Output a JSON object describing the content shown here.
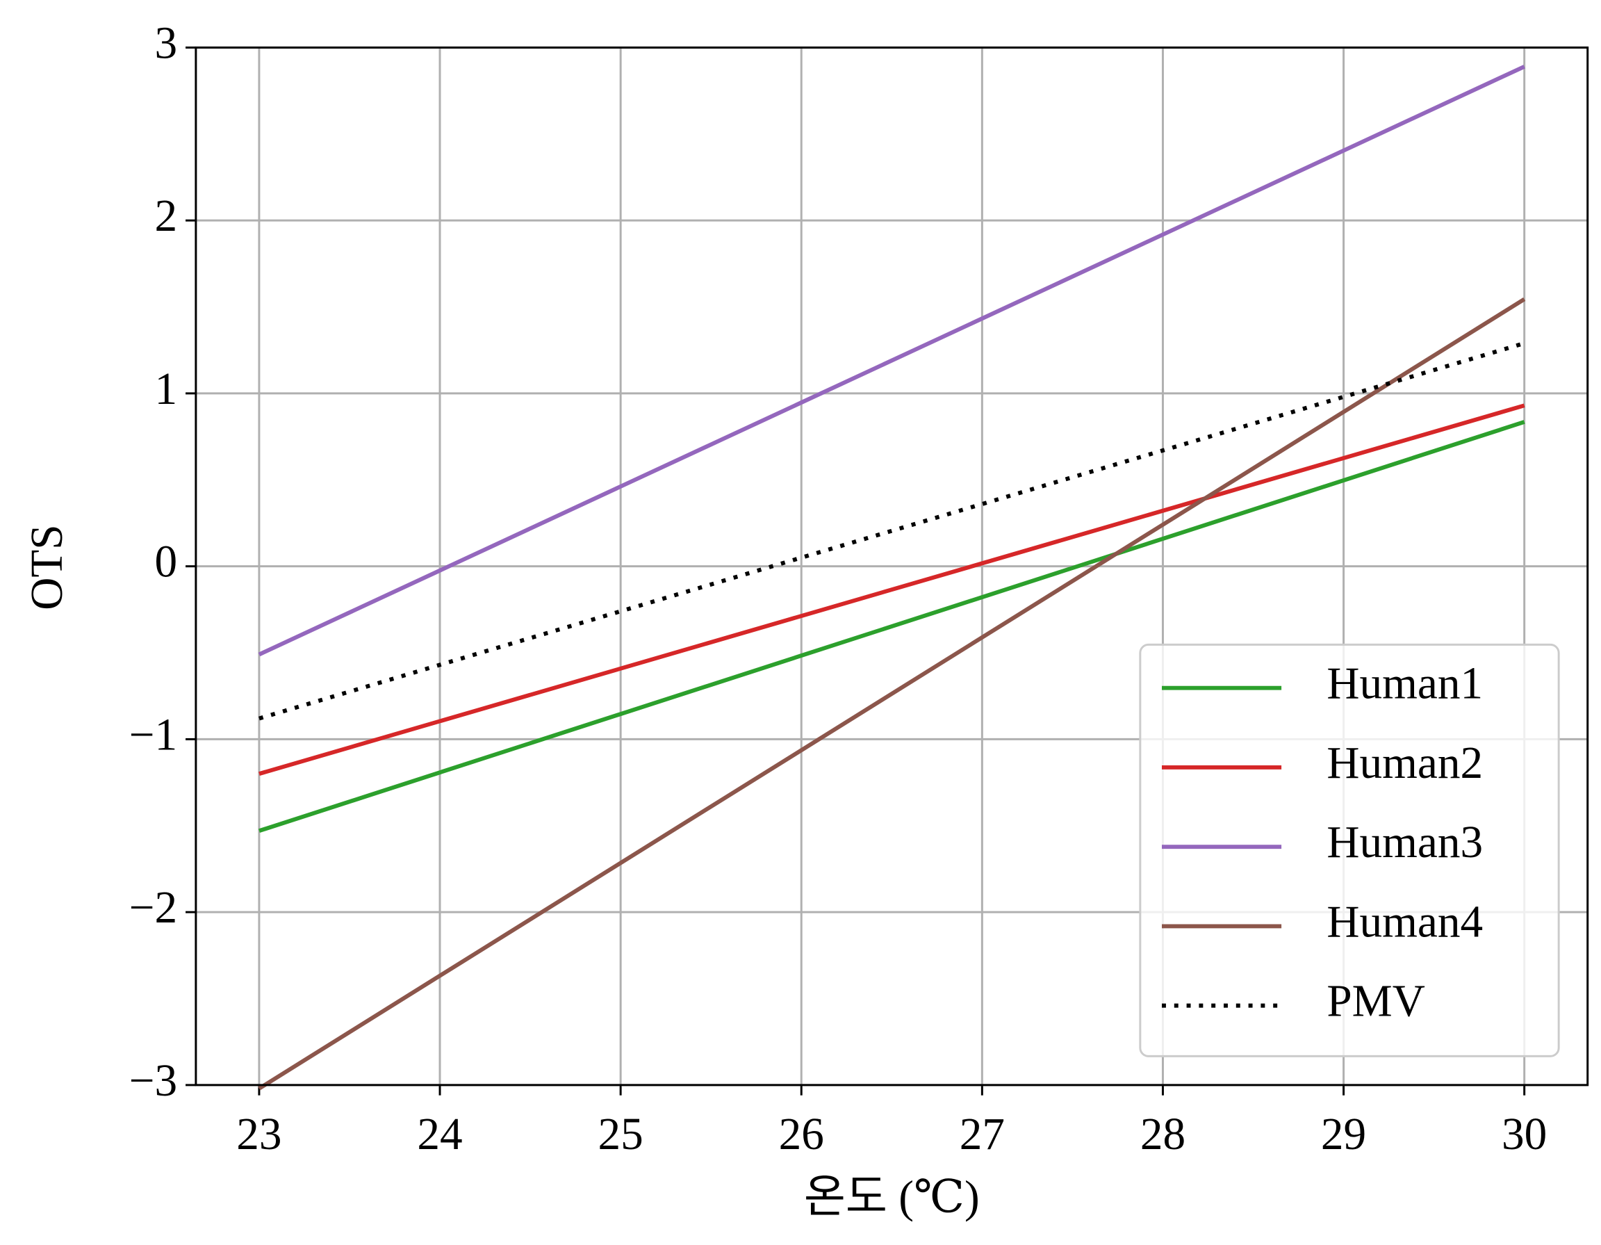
{
  "chart_data": {
    "type": "line",
    "x_label": "온도 (℃)",
    "y_label": "OTS",
    "x": [
      23,
      30
    ],
    "series": [
      {
        "name": "Human1",
        "color": "#2ca02c",
        "style": "solid",
        "values": [
          -1.53,
          0.835
        ]
      },
      {
        "name": "Human2",
        "color": "#d62728",
        "style": "solid",
        "values": [
          -1.2,
          0.93
        ]
      },
      {
        "name": "Human3",
        "color": "#9467bd",
        "style": "solid",
        "values": [
          -0.51,
          2.89
        ]
      },
      {
        "name": "Human4",
        "color": "#8c564b",
        "style": "solid",
        "values": [
          -3.02,
          1.545
        ]
      },
      {
        "name": "PMV",
        "color": "#000000",
        "style": "dotted",
        "values": [
          -0.88,
          1.29
        ]
      }
    ],
    "xlim": [
      22.65,
      30.35
    ],
    "ylim": [
      -3,
      3
    ],
    "xticks": [
      23,
      24,
      25,
      26,
      27,
      28,
      29,
      30
    ],
    "yticks": [
      {
        "value": -3,
        "label": "−3"
      },
      {
        "value": -2,
        "label": "−2"
      },
      {
        "value": -1,
        "label": "−1"
      },
      0,
      1,
      2,
      3
    ],
    "grid": true,
    "legend": "lower right"
  }
}
